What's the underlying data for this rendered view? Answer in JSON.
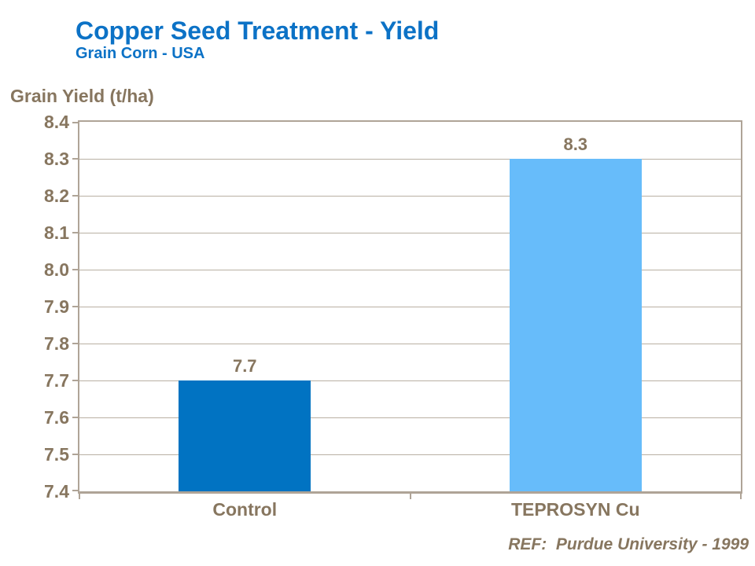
{
  "header": {
    "title": "Copper Seed Treatment - Yield",
    "subtitle": "Grain Corn - USA"
  },
  "chart_data": {
    "type": "bar",
    "title": "Copper Seed Treatment - Yield",
    "subtitle": "Grain Corn - USA",
    "ylabel": "Grain Yield (t/ha)",
    "xlabel": "",
    "categories": [
      "Control",
      "TEPROSYN Cu"
    ],
    "values": [
      7.7,
      8.3
    ],
    "data_labels": [
      "7.7",
      "8.3"
    ],
    "bar_colors": [
      "#0173C2",
      "#67BCFA"
    ],
    "ylim": [
      7.4,
      8.4
    ],
    "ytick_step": 0.1,
    "yticks": [
      "8.4",
      "8.3",
      "8.2",
      "8.1",
      "8.0",
      "7.9",
      "7.8",
      "7.7",
      "7.6",
      "7.5",
      "7.4"
    ],
    "grid": true,
    "legend": false
  },
  "footer": {
    "reference": "REF:  Purdue University - 1999"
  },
  "colors": {
    "title_blue": "#0C72C6",
    "text_brown": "#87765F",
    "axis_line": "#AFA497",
    "gridline": "#B9B0A3",
    "bar_control": "#0173C2",
    "bar_teprosyn": "#67BCFA"
  }
}
